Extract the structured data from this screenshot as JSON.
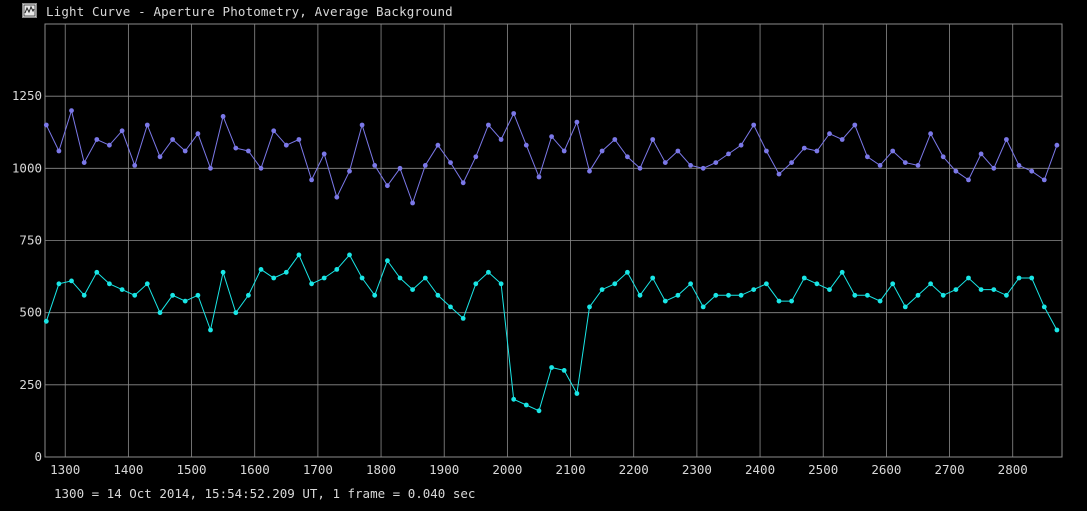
{
  "window": {
    "title": "Light Curve - Aperture Photometry, Average Background",
    "icon": "light-curve-app-icon"
  },
  "footer": {
    "note": "1300 = 14 Oct 2014, 15:54:52.209 UT, 1 frame = 0.040 sec"
  },
  "colors": {
    "background": "#000000",
    "grid": "#8c8c8c",
    "text": "#d8d8d8",
    "series_upper": "#7b78e8",
    "series_lower": "#19e6e6"
  },
  "chart_data": {
    "type": "line",
    "title": "",
    "xlabel": "",
    "ylabel": "",
    "xlim": [
      1268,
      2878
    ],
    "ylim": [
      0,
      1500
    ],
    "xticks": [
      1300,
      1400,
      1500,
      1600,
      1700,
      1800,
      1900,
      2000,
      2100,
      2200,
      2300,
      2400,
      2500,
      2600,
      2700,
      2800
    ],
    "yticks": [
      0,
      250,
      500,
      750,
      1000,
      1250
    ],
    "grid": true,
    "legend": "none",
    "markers": true,
    "series": [
      {
        "color": "#7b78e8",
        "x": [
          1270,
          1290,
          1310,
          1330,
          1350,
          1370,
          1390,
          1410,
          1430,
          1450,
          1470,
          1490,
          1510,
          1530,
          1550,
          1570,
          1590,
          1610,
          1630,
          1650,
          1670,
          1690,
          1710,
          1730,
          1750,
          1770,
          1790,
          1810,
          1830,
          1850,
          1870,
          1890,
          1910,
          1930,
          1950,
          1970,
          1990,
          2010,
          2030,
          2050,
          2070,
          2090,
          2110,
          2130,
          2150,
          2170,
          2190,
          2210,
          2230,
          2250,
          2270,
          2290,
          2310,
          2330,
          2350,
          2370,
          2390,
          2410,
          2430,
          2450,
          2470,
          2490,
          2510,
          2530,
          2550,
          2570,
          2590,
          2610,
          2630,
          2650,
          2670,
          2690,
          2710,
          2730,
          2750,
          2770,
          2790,
          2810,
          2830,
          2850,
          2870
        ],
        "values": [
          1150,
          1060,
          1200,
          1020,
          1100,
          1080,
          1130,
          1010,
          1150,
          1040,
          1100,
          1060,
          1120,
          1000,
          1180,
          1070,
          1060,
          1000,
          1130,
          1080,
          1100,
          960,
          1050,
          900,
          990,
          1150,
          1010,
          940,
          1000,
          880,
          1010,
          1080,
          1020,
          950,
          1040,
          1150,
          1100,
          1190,
          1080,
          970,
          1110,
          1060,
          1160,
          990,
          1060,
          1100,
          1040,
          1000,
          1100,
          1020,
          1060,
          1010,
          1000,
          1020,
          1050,
          1080,
          1150,
          1060,
          980,
          1020,
          1070,
          1060,
          1120,
          1100,
          1150,
          1040,
          1010,
          1060,
          1020,
          1010,
          1120,
          1040,
          990,
          960,
          1050,
          1000,
          1100,
          1010,
          990,
          960,
          1080
        ]
      },
      {
        "color": "#19e6e6",
        "x": [
          1270,
          1290,
          1310,
          1330,
          1350,
          1370,
          1390,
          1410,
          1430,
          1450,
          1470,
          1490,
          1510,
          1530,
          1550,
          1570,
          1590,
          1610,
          1630,
          1650,
          1670,
          1690,
          1710,
          1730,
          1750,
          1770,
          1790,
          1810,
          1830,
          1850,
          1870,
          1890,
          1910,
          1930,
          1950,
          1970,
          1990,
          2010,
          2030,
          2050,
          2070,
          2090,
          2110,
          2130,
          2150,
          2170,
          2190,
          2210,
          2230,
          2250,
          2270,
          2290,
          2310,
          2330,
          2350,
          2370,
          2390,
          2410,
          2430,
          2450,
          2470,
          2490,
          2510,
          2530,
          2550,
          2570,
          2590,
          2610,
          2630,
          2650,
          2670,
          2690,
          2710,
          2730,
          2750,
          2770,
          2790,
          2810,
          2830,
          2850,
          2870
        ],
        "values": [
          470,
          600,
          610,
          560,
          640,
          600,
          580,
          560,
          600,
          500,
          560,
          540,
          560,
          440,
          640,
          500,
          560,
          650,
          620,
          640,
          700,
          600,
          620,
          650,
          700,
          620,
          560,
          680,
          620,
          580,
          620,
          560,
          520,
          480,
          600,
          640,
          600,
          200,
          180,
          160,
          310,
          300,
          220,
          520,
          580,
          600,
          640,
          560,
          620,
          540,
          560,
          600,
          520,
          560,
          560,
          560,
          580,
          600,
          540,
          540,
          620,
          600,
          580,
          640,
          560,
          560,
          540,
          600,
          520,
          560,
          600,
          560,
          580,
          620,
          580,
          580,
          560,
          620,
          620,
          520,
          440
        ]
      }
    ]
  }
}
